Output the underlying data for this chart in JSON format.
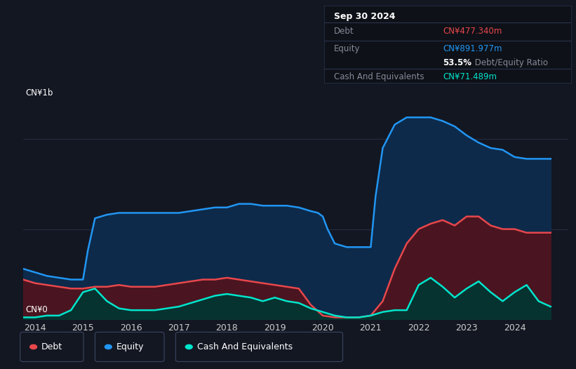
{
  "background_color": "#131722",
  "plot_bg_color": "#131722",
  "title_box": {
    "date": "Sep 30 2024",
    "debt_label": "Debt",
    "debt_value": "CN¥477.340m",
    "debt_color": "#e8474c",
    "equity_label": "Equity",
    "equity_value": "CN¥891.977m",
    "equity_color": "#2196f3",
    "ratio_bold": "53.5%",
    "ratio_text": " Debt/Equity Ratio",
    "cash_label": "Cash And Equivalents",
    "cash_value": "CN¥71.489m",
    "cash_color": "#00e5cc"
  },
  "ylabel_top": "CN¥1b",
  "ylabel_bottom": "CN¥0",
  "x_ticks": [
    2014,
    2015,
    2016,
    2017,
    2018,
    2019,
    2020,
    2021,
    2022,
    2023,
    2024
  ],
  "line_colors": {
    "debt": "#e8474c",
    "equity": "#2196f3",
    "cash": "#00e5cc"
  },
  "fill_colors": {
    "debt": "#4a1520",
    "equity": "#0d2a4a",
    "cash": "#063330"
  },
  "legend": [
    {
      "label": "Debt",
      "color": "#e8474c"
    },
    {
      "label": "Equity",
      "color": "#2196f3"
    },
    {
      "label": "Cash And Equivalents",
      "color": "#00e5cc"
    }
  ],
  "equity_x": [
    2013.75,
    2014.0,
    2014.25,
    2014.5,
    2014.75,
    2015.0,
    2015.1,
    2015.25,
    2015.5,
    2015.75,
    2016.0,
    2016.25,
    2016.5,
    2016.75,
    2017.0,
    2017.25,
    2017.5,
    2017.75,
    2018.0,
    2018.25,
    2018.5,
    2018.75,
    2019.0,
    2019.25,
    2019.5,
    2019.75,
    2019.9,
    2020.0,
    2020.1,
    2020.25,
    2020.5,
    2020.75,
    2021.0,
    2021.1,
    2021.25,
    2021.5,
    2021.75,
    2022.0,
    2022.25,
    2022.5,
    2022.75,
    2023.0,
    2023.25,
    2023.5,
    2023.75,
    2024.0,
    2024.25,
    2024.5,
    2024.75
  ],
  "equity_y": [
    0.28,
    0.26,
    0.24,
    0.23,
    0.22,
    0.22,
    0.38,
    0.56,
    0.58,
    0.59,
    0.59,
    0.59,
    0.59,
    0.59,
    0.59,
    0.6,
    0.61,
    0.62,
    0.62,
    0.64,
    0.64,
    0.63,
    0.63,
    0.63,
    0.62,
    0.6,
    0.59,
    0.57,
    0.5,
    0.42,
    0.4,
    0.4,
    0.4,
    0.68,
    0.95,
    1.08,
    1.12,
    1.12,
    1.12,
    1.1,
    1.07,
    1.02,
    0.98,
    0.95,
    0.94,
    0.9,
    0.89,
    0.89,
    0.89
  ],
  "debt_x": [
    2013.75,
    2014.0,
    2014.25,
    2014.5,
    2014.75,
    2015.0,
    2015.25,
    2015.5,
    2015.75,
    2016.0,
    2016.25,
    2016.5,
    2016.75,
    2017.0,
    2017.25,
    2017.5,
    2017.75,
    2018.0,
    2018.25,
    2018.5,
    2018.75,
    2019.0,
    2019.25,
    2019.5,
    2019.75,
    2020.0,
    2020.25,
    2020.5,
    2020.75,
    2021.0,
    2021.25,
    2021.5,
    2021.75,
    2022.0,
    2022.25,
    2022.5,
    2022.75,
    2023.0,
    2023.25,
    2023.5,
    2023.75,
    2024.0,
    2024.25,
    2024.5,
    2024.75
  ],
  "debt_y": [
    0.22,
    0.2,
    0.19,
    0.18,
    0.17,
    0.17,
    0.18,
    0.18,
    0.19,
    0.18,
    0.18,
    0.18,
    0.19,
    0.2,
    0.21,
    0.22,
    0.22,
    0.23,
    0.22,
    0.21,
    0.2,
    0.19,
    0.18,
    0.17,
    0.08,
    0.02,
    0.01,
    0.01,
    0.01,
    0.02,
    0.1,
    0.28,
    0.42,
    0.5,
    0.53,
    0.55,
    0.52,
    0.57,
    0.57,
    0.52,
    0.5,
    0.5,
    0.48,
    0.48,
    0.48
  ],
  "cash_x": [
    2013.75,
    2014.0,
    2014.25,
    2014.5,
    2014.75,
    2015.0,
    2015.25,
    2015.5,
    2015.75,
    2016.0,
    2016.25,
    2016.5,
    2016.75,
    2017.0,
    2017.25,
    2017.5,
    2017.75,
    2018.0,
    2018.25,
    2018.5,
    2018.75,
    2019.0,
    2019.25,
    2019.5,
    2019.75,
    2020.0,
    2020.25,
    2020.5,
    2020.75,
    2021.0,
    2021.25,
    2021.5,
    2021.75,
    2022.0,
    2022.25,
    2022.5,
    2022.75,
    2023.0,
    2023.25,
    2023.5,
    2023.75,
    2024.0,
    2024.25,
    2024.5,
    2024.75
  ],
  "cash_y": [
    0.01,
    0.01,
    0.02,
    0.02,
    0.05,
    0.15,
    0.17,
    0.1,
    0.06,
    0.05,
    0.05,
    0.05,
    0.06,
    0.07,
    0.09,
    0.11,
    0.13,
    0.14,
    0.13,
    0.12,
    0.1,
    0.12,
    0.1,
    0.09,
    0.06,
    0.04,
    0.02,
    0.01,
    0.01,
    0.02,
    0.04,
    0.05,
    0.05,
    0.19,
    0.23,
    0.18,
    0.12,
    0.17,
    0.21,
    0.15,
    0.1,
    0.15,
    0.19,
    0.1,
    0.07
  ],
  "ylim": [
    0,
    1.28
  ],
  "xlim": [
    2013.75,
    2025.1
  ],
  "gridlines": [
    0.5,
    1.0
  ],
  "grid_color": "#2a3550"
}
